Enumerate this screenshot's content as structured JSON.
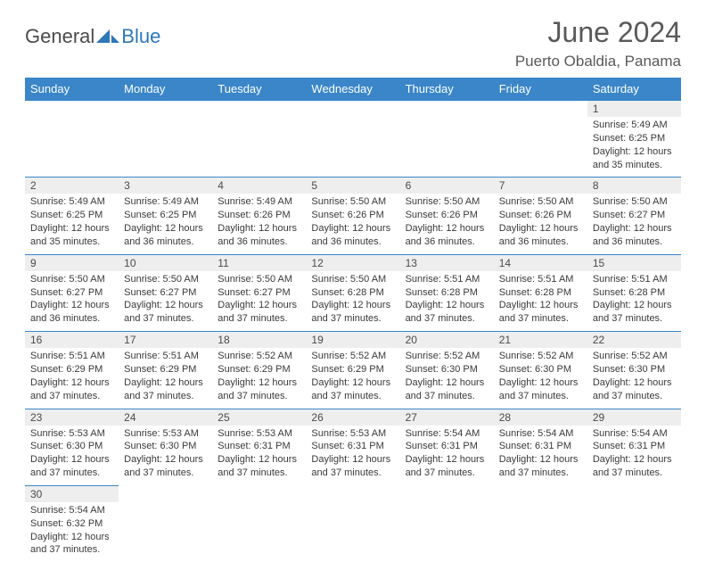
{
  "logo": {
    "general": "General",
    "blue": "Blue"
  },
  "title": "June 2024",
  "location": "Puerto Obaldia, Panama",
  "colors": {
    "header_bg": "#3a86c8",
    "header_fg": "#ffffff",
    "daynum_bg": "#eeeeee",
    "border": "#3a86c8",
    "text": "#3a3a3a",
    "title": "#595959",
    "logo_blue": "#2e77b8"
  },
  "weekdays": [
    "Sunday",
    "Monday",
    "Tuesday",
    "Wednesday",
    "Thursday",
    "Friday",
    "Saturday"
  ],
  "days": [
    {
      "n": 1,
      "sr": "5:49 AM",
      "ss": "6:25 PM",
      "dl": "12 hours and 35 minutes."
    },
    {
      "n": 2,
      "sr": "5:49 AM",
      "ss": "6:25 PM",
      "dl": "12 hours and 35 minutes."
    },
    {
      "n": 3,
      "sr": "5:49 AM",
      "ss": "6:25 PM",
      "dl": "12 hours and 36 minutes."
    },
    {
      "n": 4,
      "sr": "5:49 AM",
      "ss": "6:26 PM",
      "dl": "12 hours and 36 minutes."
    },
    {
      "n": 5,
      "sr": "5:50 AM",
      "ss": "6:26 PM",
      "dl": "12 hours and 36 minutes."
    },
    {
      "n": 6,
      "sr": "5:50 AM",
      "ss": "6:26 PM",
      "dl": "12 hours and 36 minutes."
    },
    {
      "n": 7,
      "sr": "5:50 AM",
      "ss": "6:26 PM",
      "dl": "12 hours and 36 minutes."
    },
    {
      "n": 8,
      "sr": "5:50 AM",
      "ss": "6:27 PM",
      "dl": "12 hours and 36 minutes."
    },
    {
      "n": 9,
      "sr": "5:50 AM",
      "ss": "6:27 PM",
      "dl": "12 hours and 36 minutes."
    },
    {
      "n": 10,
      "sr": "5:50 AM",
      "ss": "6:27 PM",
      "dl": "12 hours and 37 minutes."
    },
    {
      "n": 11,
      "sr": "5:50 AM",
      "ss": "6:27 PM",
      "dl": "12 hours and 37 minutes."
    },
    {
      "n": 12,
      "sr": "5:50 AM",
      "ss": "6:28 PM",
      "dl": "12 hours and 37 minutes."
    },
    {
      "n": 13,
      "sr": "5:51 AM",
      "ss": "6:28 PM",
      "dl": "12 hours and 37 minutes."
    },
    {
      "n": 14,
      "sr": "5:51 AM",
      "ss": "6:28 PM",
      "dl": "12 hours and 37 minutes."
    },
    {
      "n": 15,
      "sr": "5:51 AM",
      "ss": "6:28 PM",
      "dl": "12 hours and 37 minutes."
    },
    {
      "n": 16,
      "sr": "5:51 AM",
      "ss": "6:29 PM",
      "dl": "12 hours and 37 minutes."
    },
    {
      "n": 17,
      "sr": "5:51 AM",
      "ss": "6:29 PM",
      "dl": "12 hours and 37 minutes."
    },
    {
      "n": 18,
      "sr": "5:52 AM",
      "ss": "6:29 PM",
      "dl": "12 hours and 37 minutes."
    },
    {
      "n": 19,
      "sr": "5:52 AM",
      "ss": "6:29 PM",
      "dl": "12 hours and 37 minutes."
    },
    {
      "n": 20,
      "sr": "5:52 AM",
      "ss": "6:30 PM",
      "dl": "12 hours and 37 minutes."
    },
    {
      "n": 21,
      "sr": "5:52 AM",
      "ss": "6:30 PM",
      "dl": "12 hours and 37 minutes."
    },
    {
      "n": 22,
      "sr": "5:52 AM",
      "ss": "6:30 PM",
      "dl": "12 hours and 37 minutes."
    },
    {
      "n": 23,
      "sr": "5:53 AM",
      "ss": "6:30 PM",
      "dl": "12 hours and 37 minutes."
    },
    {
      "n": 24,
      "sr": "5:53 AM",
      "ss": "6:30 PM",
      "dl": "12 hours and 37 minutes."
    },
    {
      "n": 25,
      "sr": "5:53 AM",
      "ss": "6:31 PM",
      "dl": "12 hours and 37 minutes."
    },
    {
      "n": 26,
      "sr": "5:53 AM",
      "ss": "6:31 PM",
      "dl": "12 hours and 37 minutes."
    },
    {
      "n": 27,
      "sr": "5:54 AM",
      "ss": "6:31 PM",
      "dl": "12 hours and 37 minutes."
    },
    {
      "n": 28,
      "sr": "5:54 AM",
      "ss": "6:31 PM",
      "dl": "12 hours and 37 minutes."
    },
    {
      "n": 29,
      "sr": "5:54 AM",
      "ss": "6:31 PM",
      "dl": "12 hours and 37 minutes."
    },
    {
      "n": 30,
      "sr": "5:54 AM",
      "ss": "6:32 PM",
      "dl": "12 hours and 37 minutes."
    }
  ],
  "labels": {
    "sunrise": "Sunrise:",
    "sunset": "Sunset:",
    "daylight": "Daylight:"
  },
  "grid": {
    "first_weekday_index": 6,
    "rows": 6,
    "cols": 7
  }
}
